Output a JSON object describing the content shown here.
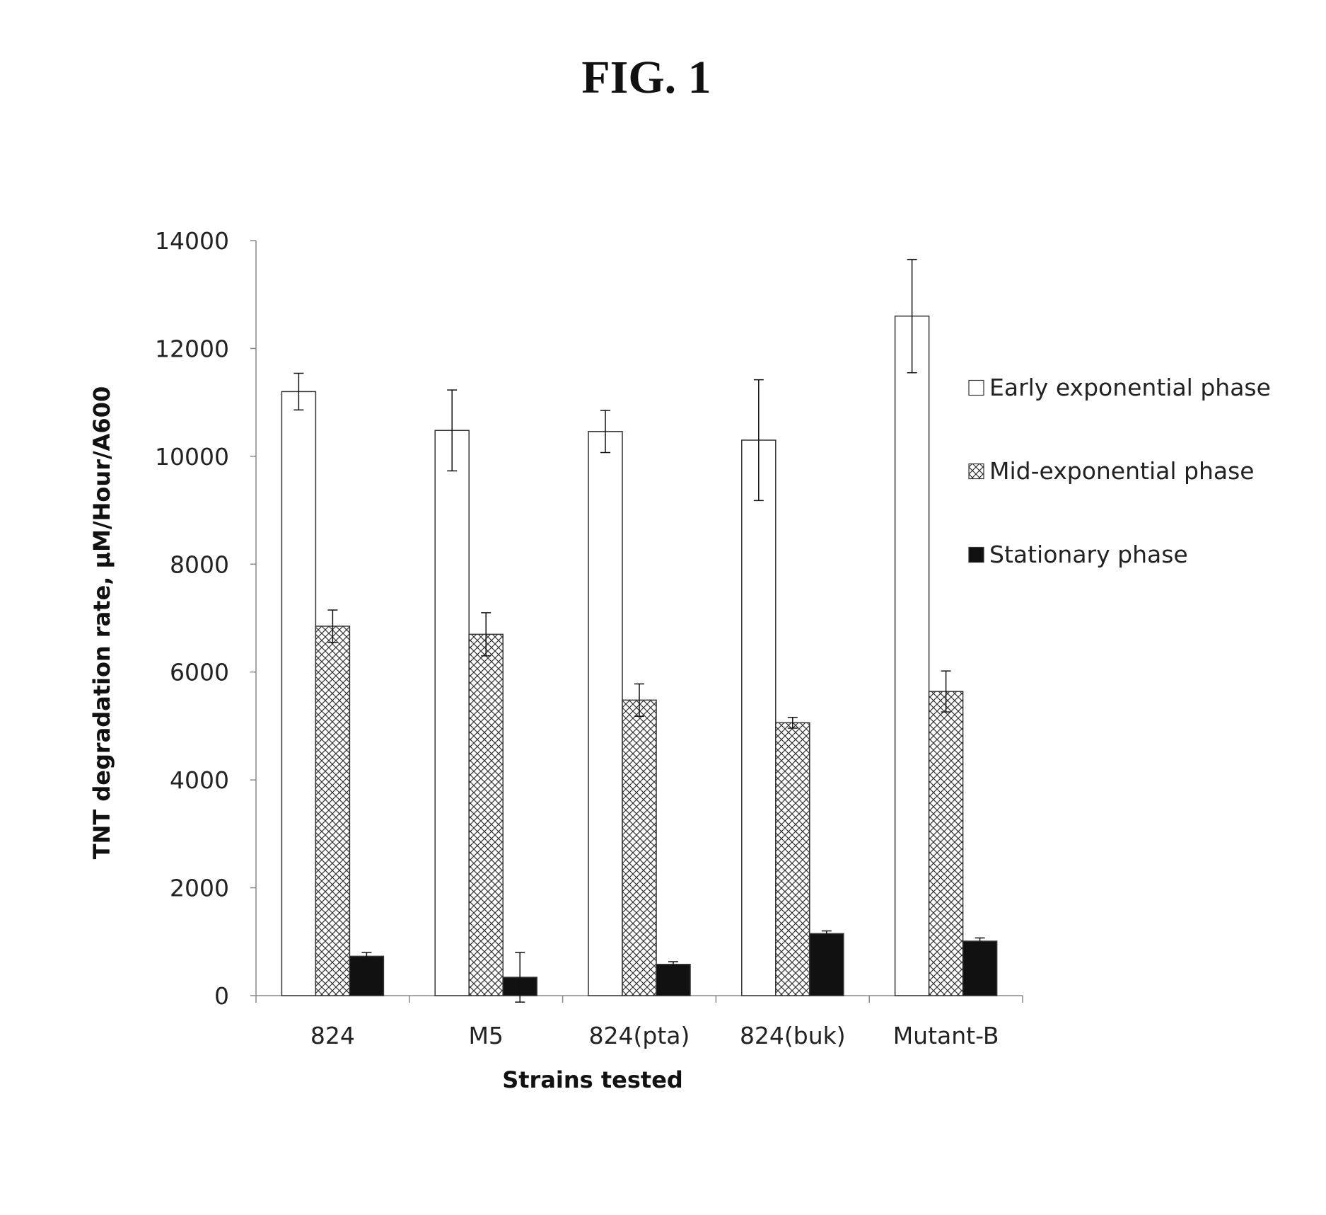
{
  "figure": {
    "title": "FIG. 1"
  },
  "chart_data": {
    "type": "bar",
    "title": "",
    "xlabel": "Strains tested",
    "ylabel": "TNT degradation rate, μM/Hour/A600",
    "ylim": [
      0,
      14000
    ],
    "yticks": [
      0,
      2000,
      4000,
      6000,
      8000,
      10000,
      12000,
      14000
    ],
    "categories": [
      "824",
      "M5",
      "824(pta)",
      "824(buk)",
      "Mutant-B"
    ],
    "grid": false,
    "legend_position": "right",
    "series": [
      {
        "name": "Early exponential phase",
        "fill": "white",
        "values": [
          11200,
          10480,
          10460,
          10300,
          12600
        ],
        "errors": [
          340,
          750,
          390,
          1120,
          1050
        ]
      },
      {
        "name": "Mid-exponential phase",
        "fill": "crosshatch",
        "values": [
          6850,
          6700,
          5480,
          5060,
          5640
        ],
        "errors": [
          300,
          400,
          300,
          100,
          380
        ]
      },
      {
        "name": "Stationary phase",
        "fill": "black",
        "values": [
          730,
          340,
          580,
          1150,
          1010
        ],
        "errors": [
          70,
          460,
          50,
          50,
          60
        ]
      }
    ]
  }
}
